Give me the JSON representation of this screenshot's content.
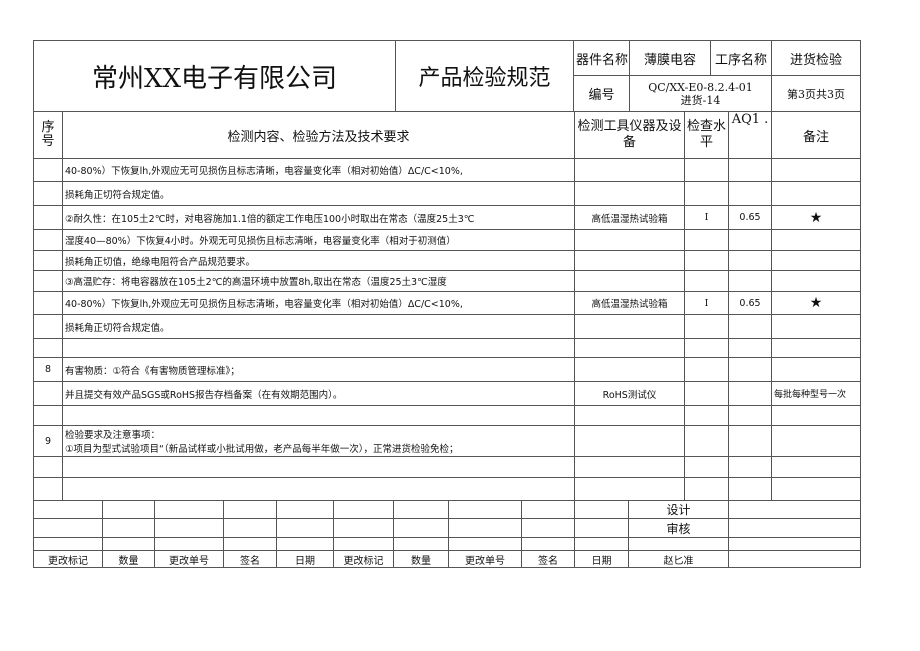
{
  "header": {
    "company": "常州XX电子有限公司",
    "doc_title": "产品检验规范",
    "part_label": "器件名称",
    "part_value": "薄膜电容",
    "process_label": "工序名称",
    "process_value": "进货检验",
    "code_label": "编号",
    "code_value_1": "QC/XX-E0-8.2.4-01",
    "code_value_2": "进货-14",
    "page": "第3页共3页"
  },
  "columns": {
    "seq": "序号",
    "content": "检测内容、检验方法及技术要求",
    "tool": "检测工具仪器及设备",
    "level": "检查水平",
    "aql": "AQ1 .",
    "note": "备注"
  },
  "rows": [
    {
      "seq": "",
      "text": "40-80%）下恢复lh,外观应无可见损伤且标志清晰，电容量变化率（相对初始值）ΔC/C<10%,",
      "tool": "",
      "level": "",
      "aql": "",
      "note": ""
    },
    {
      "seq": "",
      "text": "损耗角正切符合规定值。",
      "tool": "",
      "level": "",
      "aql": "",
      "note": ""
    },
    {
      "seq": "",
      "text": "②耐久性：在105土2℃时，对电容施加1.1倍的额定工作电压100小时取出在常态（温度25土3℃",
      "tool": "高低温湿热试验箱",
      "level": "I",
      "aql": "0.65",
      "note": "★"
    },
    {
      "seq": "",
      "text": "湿度40—80%）下恢复4小时。外观无可见损伤且标志清晰，电容量变化率（相对于初测值）",
      "tool": "",
      "level": "",
      "aql": "",
      "note": ""
    },
    {
      "seq": "",
      "text": "损耗角正切值，绝缘电阻符合产品规范要求。",
      "tool": "",
      "level": "",
      "aql": "",
      "note": ""
    },
    {
      "seq": "",
      "text": "③高温贮存：将电容器放在105土2℃的高温环境中放置8h,取出在常态（温度25土3℃湿度",
      "tool": "",
      "level": "",
      "aql": "",
      "note": ""
    },
    {
      "seq": "",
      "text": "40-80%）下恢复lh,外观应无可见损伤且标志清晰，电容量变化率（相对初始值）ΔC/C<10%,",
      "tool": "高低温湿热试验箱",
      "level": "I",
      "aql": "0.65",
      "note": "★"
    },
    {
      "seq": "",
      "text": "损耗角正切符合规定值。",
      "tool": "",
      "level": "",
      "aql": "",
      "note": ""
    },
    {
      "seq": "",
      "text": "",
      "tool": "",
      "level": "",
      "aql": "",
      "note": ""
    },
    {
      "seq": "8",
      "text": "有害物质：①符合《有害物质管理标准》；",
      "tool": "",
      "level": "",
      "aql": "",
      "note": ""
    },
    {
      "seq": "",
      "text": "并且提交有效产品SGS或RoHS报告存档备案（在有效期范围内）。",
      "tool": "RoHS测试仪",
      "level": "",
      "aql": "",
      "note": "每批每种型号一次"
    },
    {
      "seq": "",
      "text": "",
      "tool": "",
      "level": "",
      "aql": "",
      "note": ""
    },
    {
      "seq": "9",
      "text": "检验要求及注意事项：",
      "text2": "①项目为型式试验项目“（新品试样或小批试用做，老产品每半年做一次），正常进货检验免检；",
      "tool": "",
      "level": "",
      "aql": "",
      "note": ""
    },
    {
      "seq": "",
      "text": "",
      "tool": "",
      "level": "",
      "aql": "",
      "note": ""
    },
    {
      "seq": "",
      "text": "",
      "tool": "",
      "level": "",
      "aql": "",
      "note": ""
    }
  ],
  "footer": {
    "design": "设计",
    "review": "审核",
    "labels": [
      "更改标记",
      "数量",
      "更改单号",
      "签名",
      "日期",
      "更改标记",
      "数量",
      "更改单号",
      "签名",
      "日期"
    ],
    "approver": "赵匕准"
  }
}
